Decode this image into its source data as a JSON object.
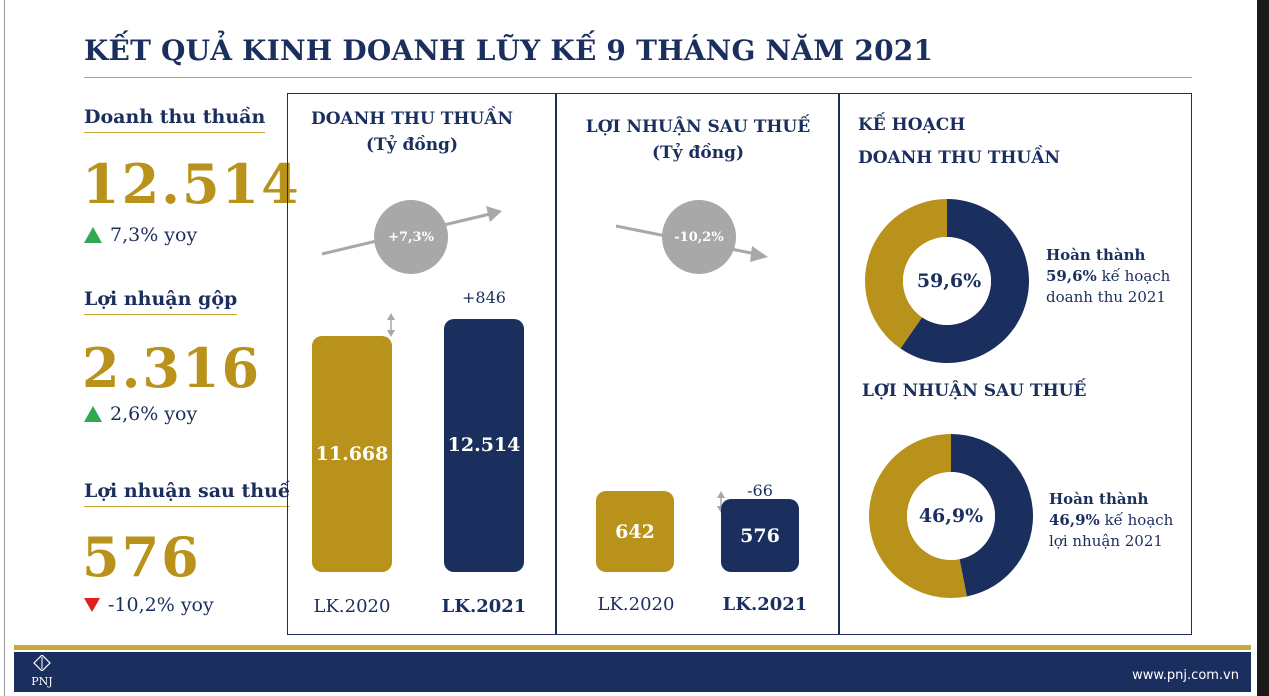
{
  "title": "KẾT QUẢ KINH DOANH LŨY KẾ 9 THÁNG NĂM 2021",
  "kpis": [
    {
      "label": "Doanh thu thuần",
      "value": "12.514",
      "change": "7,3% yoy",
      "direction": "up"
    },
    {
      "label": "Lợi nhuận gộp",
      "value": "2.316",
      "change": "2,6% yoy",
      "direction": "up"
    },
    {
      "label": "Lợi nhuận sau thuế",
      "value": "576",
      "change": "-10,2% yoy",
      "direction": "down"
    }
  ],
  "chart_data": [
    {
      "type": "bar",
      "title": "DOANH THU THUẦN",
      "subtitle": "(Tỷ đồng)",
      "categories": [
        "LK.2020",
        "LK.2021"
      ],
      "values": [
        11668,
        12514
      ],
      "value_labels": [
        "11.668",
        "12.514"
      ],
      "delta_label": "+846",
      "growth_label": "+7,3%",
      "trend": "up"
    },
    {
      "type": "bar",
      "title": "LỢI NHUẬN SAU THUẾ",
      "subtitle": "(Tỷ đồng)",
      "categories": [
        "LK.2020",
        "LK.2021"
      ],
      "values": [
        642,
        576
      ],
      "value_labels": [
        "642",
        "576"
      ],
      "delta_label": "-66",
      "growth_label": "-10,2%",
      "trend": "down"
    },
    {
      "type": "pie",
      "title": "DOANH THU THUẦN",
      "values": [
        59.6,
        40.4
      ],
      "center_label": "59,6%",
      "note_bold_1": "Hoàn thành",
      "note_bold_2": "59,6%",
      "note_rest": " kế hoạch",
      "note_line3": "doanh thu 2021",
      "colors": [
        "#1b2f5e",
        "#b8921a"
      ]
    },
    {
      "type": "pie",
      "title": "LỢI NHUẬN SAU THUẾ",
      "values": [
        46.9,
        53.1
      ],
      "center_label": "46,9%",
      "note_bold_1": "Hoàn thành",
      "note_bold_2": "46,9%",
      "note_rest": " kế hoạch",
      "note_line3": "lợi nhuận 2021",
      "colors": [
        "#1b2f5e",
        "#b8921a"
      ]
    }
  ],
  "plan_heading": "KẾ HOẠCH",
  "footer": {
    "logo": "PNJ",
    "url": "www.pnj.com.vn"
  },
  "colors": {
    "navy": "#1b2f5e",
    "gold": "#b8921a",
    "up": "#2fa84f",
    "down": "#e02020",
    "bubble": "#a8a8a8"
  }
}
